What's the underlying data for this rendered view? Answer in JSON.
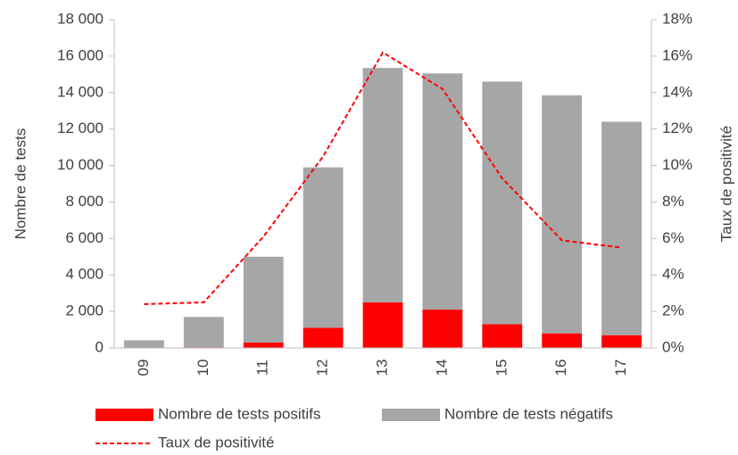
{
  "chart_data": {
    "type": "bar",
    "categories": [
      "09",
      "10",
      "11",
      "12",
      "13",
      "14",
      "15",
      "16",
      "17"
    ],
    "series": [
      {
        "name": "Nombre de tests positifs",
        "color": "#ff0000",
        "values": [
          10,
          40,
          300,
          1100,
          2500,
          2100,
          1300,
          800,
          700
        ]
      },
      {
        "name": "Nombre de tests négatifs",
        "color": "#a6a6a6",
        "values": [
          410,
          1660,
          4700,
          8800,
          12850,
          12950,
          13300,
          13050,
          11700
        ]
      },
      {
        "name": "Taux de positivité",
        "color": "#ff0000",
        "type": "line",
        "dashed": true,
        "axis": "y2",
        "values": [
          2.4,
          2.5,
          6.1,
          10.5,
          16.2,
          14.2,
          9.3,
          5.9,
          5.5
        ]
      }
    ],
    "y_label": "Nombre de tests",
    "y2_label": "Taux de positivité",
    "ylim": [
      0,
      18000
    ],
    "yticks": [
      0,
      {
        "value": 2000,
        "label": "2 000"
      },
      {
        "value": 4000,
        "label": "4 000"
      },
      {
        "value": 6000,
        "label": "6 000"
      },
      {
        "value": 8000,
        "label": "8 000"
      },
      {
        "value": 10000,
        "label": "10 000"
      },
      {
        "value": 12000,
        "label": "12 000"
      },
      {
        "value": 14000,
        "label": "14 000"
      },
      {
        "value": 16000,
        "label": "16 000"
      },
      {
        "value": 18000,
        "label": "18 000"
      }
    ],
    "y2lim": [
      0,
      18
    ],
    "y2ticks": [
      {
        "value": 0,
        "label": "0%"
      },
      {
        "value": 2,
        "label": "2%"
      },
      {
        "value": 4,
        "label": "4%"
      },
      {
        "value": 6,
        "label": "6%"
      },
      {
        "value": 8,
        "label": "8%"
      },
      {
        "value": 10,
        "label": "10%"
      },
      {
        "value": 12,
        "label": "12%"
      },
      {
        "value": 14,
        "label": "14%"
      },
      {
        "value": 16,
        "label": "16%"
      },
      {
        "value": 18,
        "label": "18%"
      }
    ],
    "stacked": true,
    "legend": "bottom"
  }
}
